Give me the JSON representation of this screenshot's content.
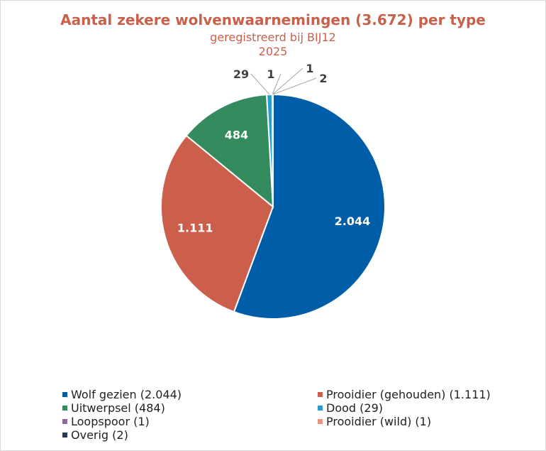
{
  "chart_data": {
    "type": "pie",
    "title": "Aantal zekere wolvenwaarnemingen (3.672) per type",
    "subtitle": "geregistreerd bij BIJ12",
    "subtitle2": "2025",
    "categories": [
      "Wolf gezien",
      "Prooidier (gehouden)",
      "Uitwerpsel",
      "Dood",
      "Loopspoor",
      "Prooidier (wild)",
      "Overig"
    ],
    "values": [
      2044,
      1111,
      484,
      29,
      1,
      1,
      2
    ],
    "data_labels": [
      "2.044",
      "1.111",
      "484",
      "29",
      "1",
      "1",
      "2"
    ],
    "legend_labels": [
      "Wolf gezien (2.044)",
      "Prooidier (gehouden) (1.111)",
      "Uitwerpsel (484)",
      "Dood (29)",
      "Loopspoor (1)",
      "Prooidier (wild) (1)",
      "Overig (2)"
    ],
    "colors": [
      "#005ea8",
      "#cc5f4c",
      "#338a5c",
      "#2a9ad6",
      "#8c6c9c",
      "#e6967e",
      "#243b53"
    ],
    "legend_placement": "bottom"
  }
}
